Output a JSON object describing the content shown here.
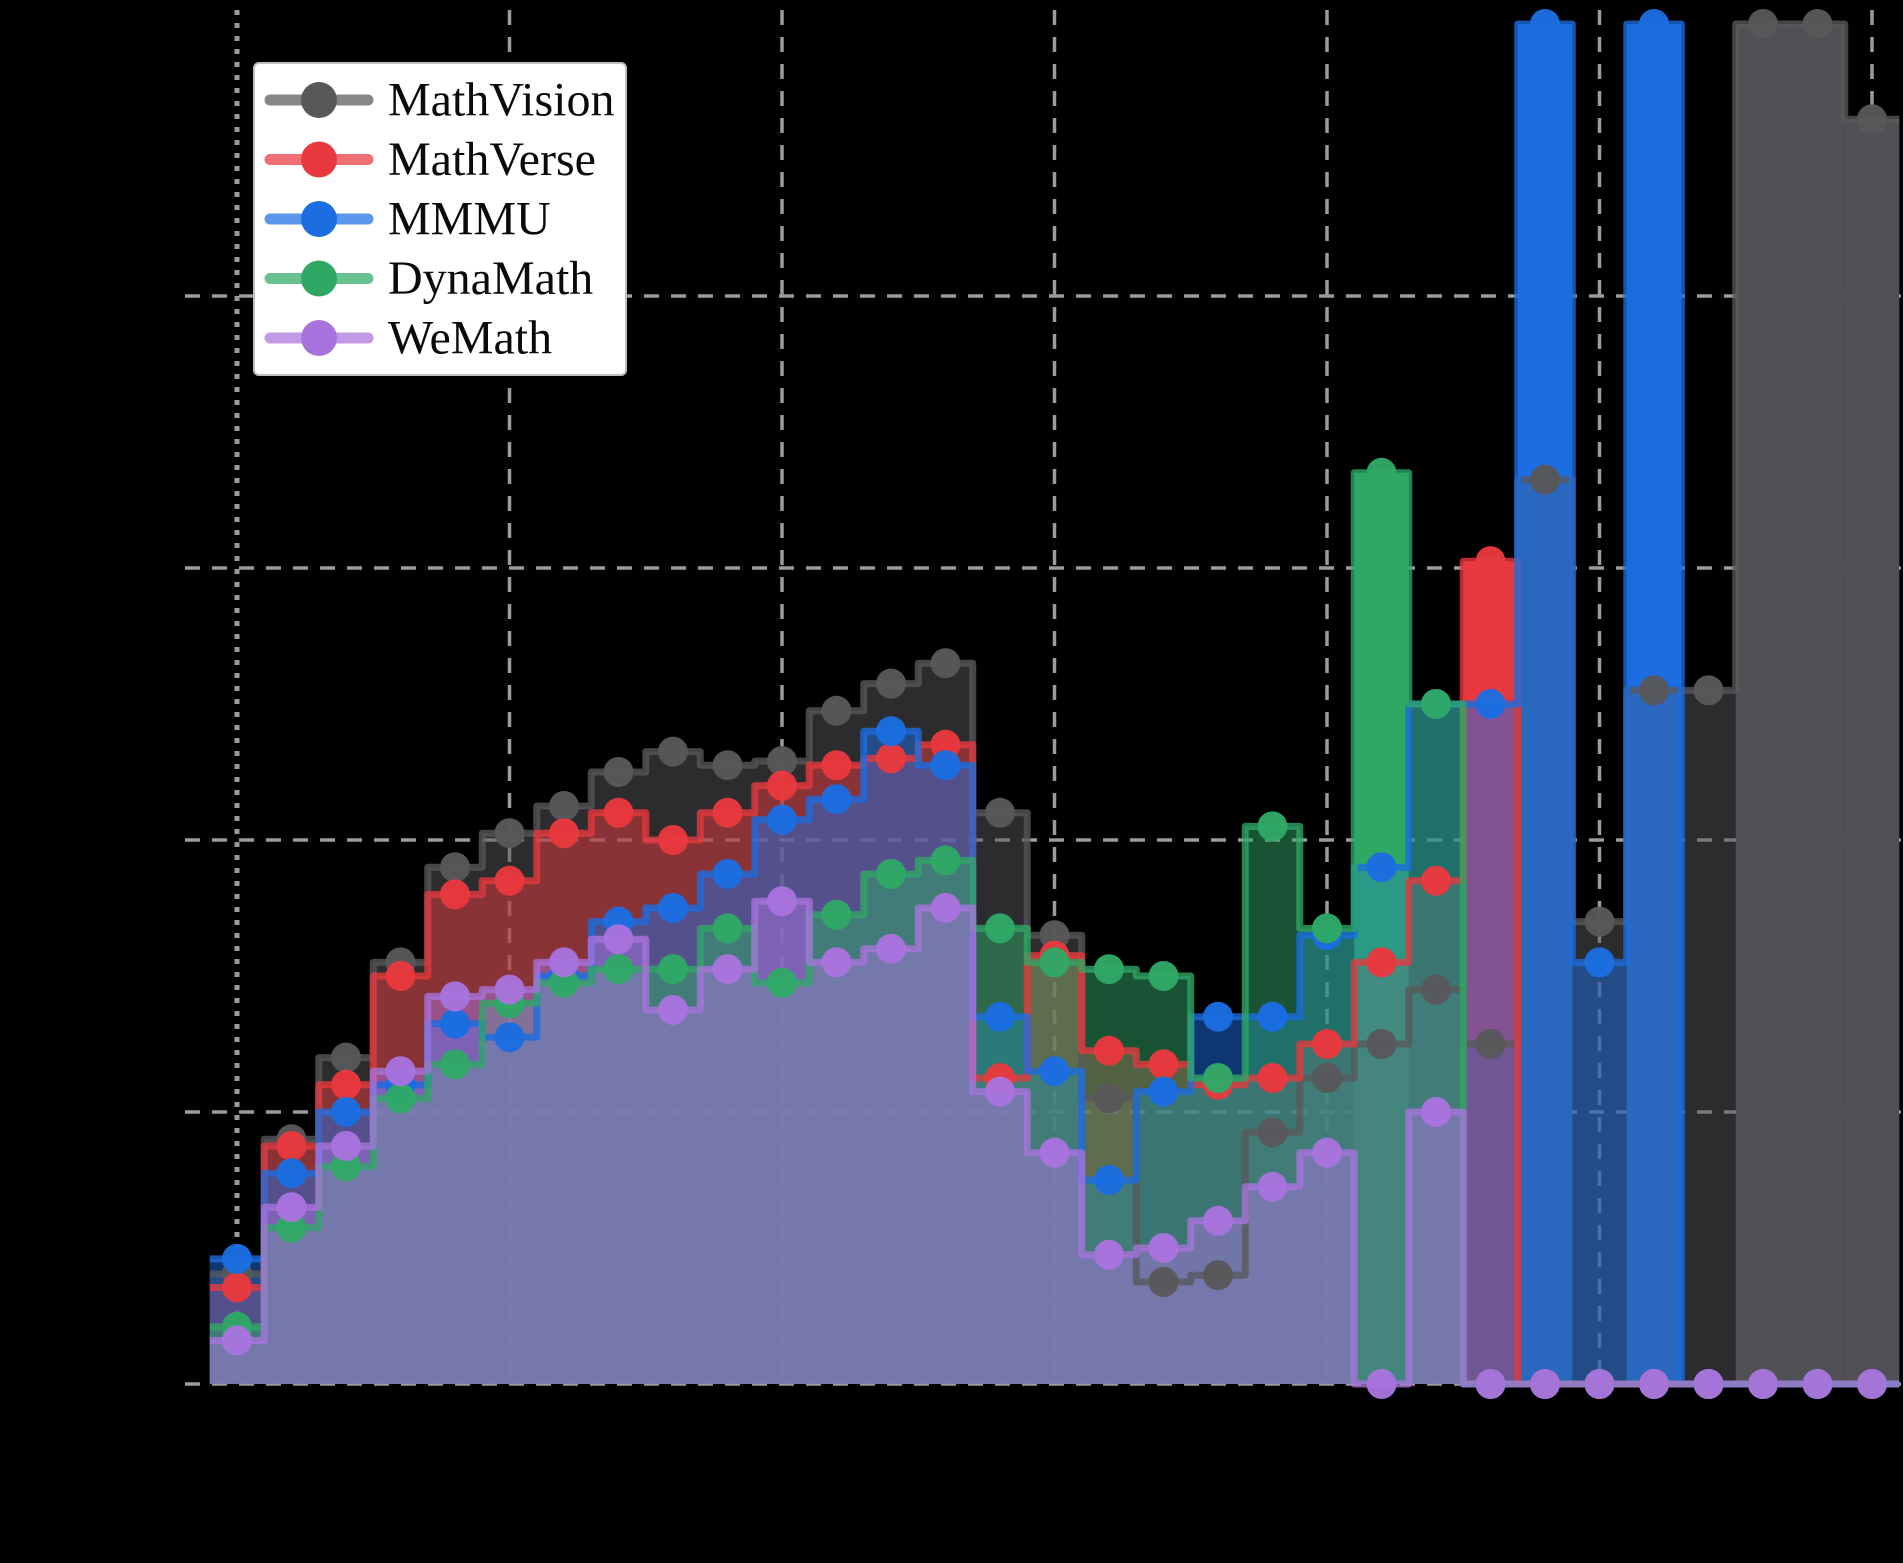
{
  "chart_data": {
    "type": "step-area-histogram",
    "description_visible_text_only": true,
    "ylim": [
      0,
      1.0
    ],
    "y_gridline_values": [
      0,
      0.2,
      0.4,
      0.6,
      0.8
    ],
    "x_gridline_bins": [
      1,
      6,
      11,
      16,
      21,
      26,
      31
    ],
    "n_bins": 31,
    "grid": "dashed",
    "legend_position": "upper-left",
    "background_color": "#000000",
    "gridline_color": "#9b9b9b",
    "legend_entries": [
      {
        "label": "MathVision",
        "color": "#58585b"
      },
      {
        "label": "MathVerse",
        "color": "#e8393e"
      },
      {
        "label": "MMMU",
        "color": "#1b6de1"
      },
      {
        "label": "DynaMath",
        "color": "#2fa866"
      },
      {
        "label": "WeMath",
        "color": "#a873dd"
      }
    ],
    "series": [
      {
        "name": "MathVision",
        "color": "#58585b",
        "fill_alpha": 0.5,
        "values": [
          0.081,
          0.18,
          0.24,
          0.31,
          0.38,
          0.405,
          0.425,
          0.45,
          0.465,
          0.455,
          0.458,
          0.495,
          0.515,
          0.53,
          0.42,
          0.33,
          0.21,
          0.075,
          0.08,
          0.185,
          0.225,
          0.25,
          0.29,
          0.25,
          0.665,
          0.34,
          0.51,
          0.51,
          1.0,
          1.0,
          0.93
        ]
      },
      {
        "name": "MathVerse",
        "color": "#e8393e",
        "fill_alpha": 0.5,
        "values": [
          0.071,
          0.175,
          0.22,
          0.3,
          0.36,
          0.37,
          0.405,
          0.42,
          0.4,
          0.42,
          0.44,
          0.455,
          0.46,
          0.47,
          0.225,
          0.315,
          0.245,
          0.235,
          0.22,
          0.225,
          0.25,
          0.31,
          0.37,
          0.605,
          0,
          0,
          0,
          0,
          0,
          0,
          0
        ]
      },
      {
        "name": "MMMU",
        "color": "#1b6de1",
        "fill_alpha": 0.5,
        "values": [
          0.092,
          0.155,
          0.2,
          0.22,
          0.265,
          0.255,
          0.3,
          0.34,
          0.35,
          0.375,
          0.415,
          0.43,
          0.48,
          0.455,
          0.27,
          0.23,
          0.15,
          0.215,
          0.27,
          0.27,
          0.33,
          0.38,
          0.5,
          0.5,
          1.0,
          0.31,
          1.0,
          0,
          0,
          0,
          0
        ]
      },
      {
        "name": "DynaMath",
        "color": "#2fa866",
        "fill_alpha": 0.5,
        "values": [
          0.042,
          0.115,
          0.16,
          0.21,
          0.235,
          0.28,
          0.295,
          0.305,
          0.305,
          0.335,
          0.295,
          0.345,
          0.375,
          0.385,
          0.335,
          0.31,
          0.305,
          0.3,
          0.225,
          0.41,
          0.335,
          0.67,
          0.5,
          0,
          0,
          0,
          0,
          0,
          0,
          0,
          0
        ]
      },
      {
        "name": "WeMath",
        "color": "#a873dd",
        "fill_alpha": 0.5,
        "values": [
          0.032,
          0.13,
          0.175,
          0.23,
          0.285,
          0.29,
          0.31,
          0.327,
          0.275,
          0.305,
          0.355,
          0.31,
          0.32,
          0.35,
          0.215,
          0.17,
          0.095,
          0.1,
          0.12,
          0.145,
          0.17,
          0,
          0.2,
          0,
          0,
          0,
          0,
          0,
          0,
          0,
          0
        ]
      }
    ],
    "opaque_spike_bars": [
      {
        "series": "DynaMath",
        "bin": 22,
        "value": 0.67,
        "color": "#2fa866"
      },
      {
        "series": "MathVerse",
        "bin": 24,
        "value": 0.605,
        "color": "#e8393e"
      },
      {
        "series": "MMMU",
        "bin": 25,
        "value": 1.0,
        "color": "#1b6de1"
      },
      {
        "series": "MMMU",
        "bin": 27,
        "value": 1.0,
        "color": "#1b6de1"
      },
      {
        "series": "MathVision",
        "bin": 29,
        "value": 1.0,
        "color": "#4a4a4e"
      },
      {
        "series": "MathVision",
        "bin": 30,
        "value": 1.0,
        "color": "#4a4a4e"
      },
      {
        "series": "MathVision",
        "bin": 31,
        "value": 0.93,
        "color": "#4a4a4e"
      }
    ],
    "axis_tick_labels_visible": false
  }
}
